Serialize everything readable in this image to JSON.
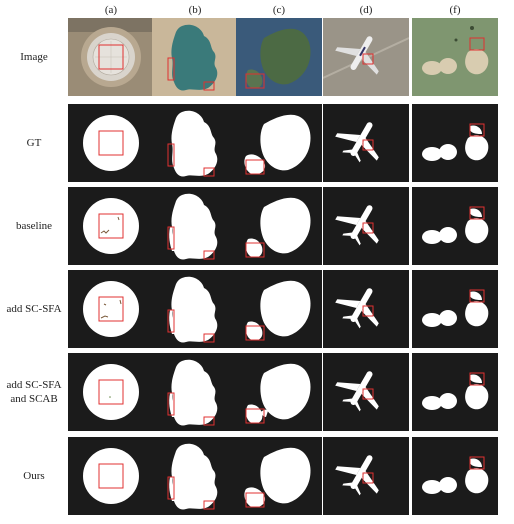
{
  "columns": [
    "(a)",
    "(b)",
    "(c)",
    "(d)",
    "(f)"
  ],
  "rows": [
    {
      "label": "Image",
      "kind": "image"
    },
    {
      "label": "GT",
      "kind": "mask",
      "variant": "gt"
    },
    {
      "label": "baseline",
      "kind": "mask",
      "variant": "baseline"
    },
    {
      "label": "add SC-SFA",
      "kind": "mask",
      "variant": "scsfa"
    },
    {
      "label": "add SC-SFA and SCAB",
      "kind": "mask",
      "variant": "scab"
    },
    {
      "label": "Ours",
      "kind": "mask",
      "variant": "ours"
    }
  ],
  "colors": {
    "mask_background": "#1b1b1b",
    "mask_foreground": "#ffffff",
    "highlight_box": "#e03030",
    "page_background": "#ffffff"
  }
}
